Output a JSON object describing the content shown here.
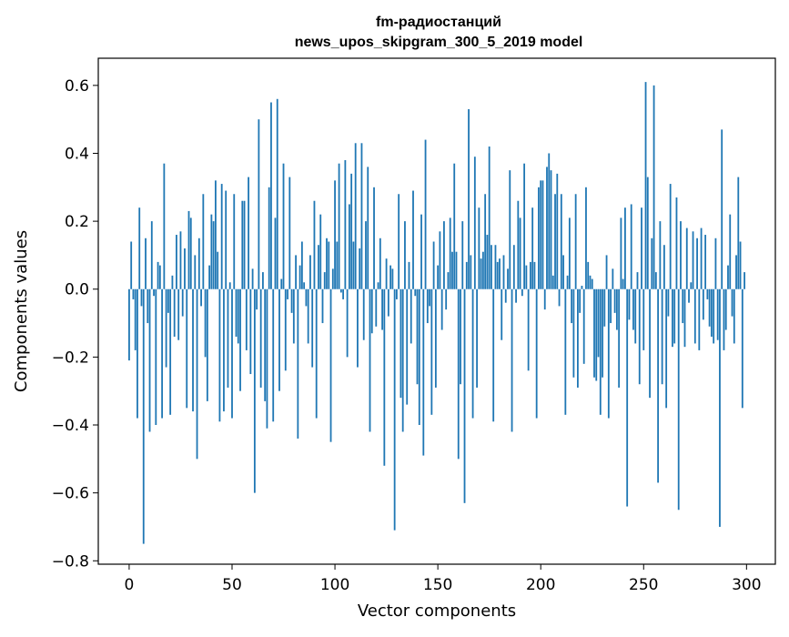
{
  "chart_data": {
    "type": "bar",
    "title": "fm-радиостанций",
    "subtitle": "news_upos_skipgram_300_5_2019 model",
    "xlabel": "Vector components",
    "ylabel": "Components values",
    "xlim": [
      -15,
      314
    ],
    "ylim": [
      -0.81,
      0.68
    ],
    "xticks": [
      0,
      50,
      100,
      150,
      200,
      250,
      300
    ],
    "yticks": [
      0.6,
      0.4,
      0.2,
      0.0,
      -0.2,
      -0.4,
      -0.6,
      -0.8
    ],
    "xtick_labels": [
      "0",
      "50",
      "100",
      "150",
      "200",
      "250",
      "300"
    ],
    "ytick_labels": [
      "0.6",
      "0.4",
      "0.2",
      "0.0",
      "−0.2",
      "−0.4",
      "−0.6",
      "−0.8"
    ],
    "bar_color": "#1f77b4",
    "grid": false,
    "x": "0..299",
    "values": [
      -0.21,
      0.14,
      -0.03,
      -0.18,
      -0.38,
      0.24,
      -0.05,
      -0.75,
      0.15,
      -0.1,
      -0.42,
      0.2,
      -0.02,
      -0.4,
      0.08,
      0.07,
      -0.38,
      0.37,
      -0.23,
      -0.07,
      -0.37,
      0.04,
      -0.14,
      0.16,
      -0.15,
      0.17,
      -0.08,
      0.12,
      -0.35,
      0.23,
      0.21,
      -0.36,
      0.1,
      -0.5,
      0.15,
      -0.05,
      0.28,
      -0.2,
      -0.33,
      0.07,
      0.22,
      0.2,
      0.32,
      0.11,
      -0.39,
      0.31,
      -0.36,
      0.29,
      -0.29,
      0.02,
      -0.38,
      0.28,
      -0.14,
      -0.16,
      -0.3,
      0.26,
      0.26,
      -0.18,
      0.33,
      -0.25,
      0.06,
      -0.6,
      -0.06,
      0.5,
      -0.29,
      0.05,
      -0.33,
      -0.41,
      0.3,
      0.55,
      -0.39,
      0.21,
      0.56,
      -0.3,
      0.03,
      0.37,
      -0.24,
      -0.03,
      0.33,
      -0.07,
      -0.16,
      0.1,
      -0.44,
      0.07,
      0.14,
      0.02,
      -0.05,
      -0.16,
      0.1,
      -0.23,
      0.26,
      -0.38,
      0.13,
      0.22,
      -0.1,
      0.05,
      0.15,
      0.14,
      -0.45,
      0.06,
      0.32,
      0.14,
      0.37,
      -0.01,
      -0.03,
      0.38,
      -0.2,
      0.25,
      0.34,
      0.14,
      0.43,
      -0.23,
      0.12,
      0.43,
      -0.15,
      0.2,
      0.36,
      -0.42,
      -0.13,
      0.3,
      -0.11,
      0.02,
      0.15,
      -0.12,
      -0.52,
      0.09,
      -0.08,
      0.07,
      0.06,
      -0.71,
      -0.03,
      0.28,
      -0.32,
      -0.42,
      0.2,
      -0.34,
      0.08,
      -0.16,
      0.29,
      -0.02,
      -0.28,
      -0.4,
      0.22,
      -0.49,
      0.44,
      -0.1,
      -0.05,
      -0.37,
      0.14,
      -0.29,
      0.07,
      0.17,
      -0.12,
      0.2,
      -0.06,
      0.05,
      0.21,
      0.11,
      0.37,
      0.11,
      -0.5,
      -0.28,
      0.2,
      -0.63,
      0.08,
      0.53,
      0.1,
      -0.38,
      0.39,
      -0.29,
      0.24,
      0.09,
      0.11,
      0.28,
      0.16,
      0.42,
      0.13,
      -0.39,
      0.13,
      0.08,
      0.09,
      -0.15,
      0.1,
      -0.04,
      0.06,
      0.35,
      -0.42,
      0.13,
      -0.04,
      0.26,
      0.21,
      -0.02,
      0.37,
      0.07,
      -0.24,
      0.08,
      0.24,
      0.08,
      -0.38,
      0.3,
      0.32,
      0.32,
      -0.06,
      0.36,
      0.4,
      0.35,
      0.04,
      0.28,
      0.34,
      -0.05,
      0.28,
      0.1,
      -0.37,
      0.04,
      0.21,
      -0.1,
      -0.26,
      0.28,
      -0.29,
      -0.07,
      0.01,
      -0.22,
      0.3,
      0.08,
      0.04,
      0.03,
      -0.26,
      -0.27,
      -0.2,
      -0.37,
      -0.26,
      -0.11,
      0.1,
      -0.38,
      -0.1,
      0.06,
      -0.07,
      -0.12,
      -0.29,
      0.21,
      0.03,
      0.24,
      -0.64,
      -0.09,
      0.25,
      -0.12,
      -0.16,
      0.05,
      -0.28,
      0.24,
      -0.18,
      0.61,
      0.33,
      -0.32,
      0.15,
      0.6,
      0.05,
      -0.57,
      0.2,
      -0.28,
      0.13,
      -0.35,
      -0.08,
      0.31,
      -0.17,
      -0.16,
      0.27,
      -0.65,
      0.2,
      -0.1,
      -0.17,
      0.18,
      -0.04,
      0.02,
      0.17,
      -0.16,
      0.15,
      -0.18,
      0.18,
      -0.09,
      0.16,
      -0.03,
      -0.11,
      -0.14,
      -0.16,
      0.15,
      -0.15,
      -0.7,
      0.47,
      -0.18,
      -0.12,
      0.07,
      0.22,
      -0.08,
      -0.16,
      0.1,
      0.33,
      0.14,
      -0.35,
      0.05
    ]
  }
}
